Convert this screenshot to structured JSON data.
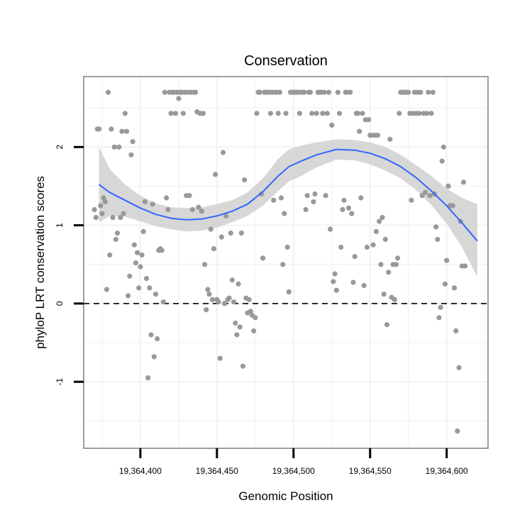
{
  "chart_data": {
    "type": "scatter",
    "title": "Conservation",
    "xlabel": "Genomic Position",
    "ylabel": "phyloP LRT conservation scores",
    "xlim": [
      19364363,
      19364627
    ],
    "ylim": [
      -1.85,
      2.9
    ],
    "x_ticks": [
      19364400,
      19364450,
      19364500,
      19364550,
      19364600
    ],
    "x_tick_labels": [
      "19,364,400",
      "19,364,450",
      "19,364,500",
      "19,364,550",
      "19,364,600"
    ],
    "y_ticks": [
      -1,
      0,
      1,
      2
    ],
    "y_tick_labels": [
      "-1",
      "0",
      "1",
      "2"
    ],
    "reference_line": {
      "y": 0,
      "style": "dashed"
    },
    "colors": {
      "points": "#999999",
      "smooth_line": "#3366FF",
      "confidence_band": "#d3d3d3",
      "grid": "#f2f2f2",
      "panel_border": "#7f7f7f"
    },
    "smooth": {
      "x": [
        19364373,
        19364380,
        19364390,
        19364400,
        19364410,
        19364420,
        19364430,
        19364440,
        19364450,
        19364460,
        19364470,
        19364480,
        19364490,
        19364497,
        19364505,
        19364515,
        19364528,
        19364540,
        19364550,
        19364560,
        19364570,
        19364580,
        19364590,
        19364600,
        19364610,
        19364620
      ],
      "y": [
        1.52,
        1.42,
        1.32,
        1.22,
        1.14,
        1.09,
        1.07,
        1.08,
        1.12,
        1.18,
        1.27,
        1.43,
        1.63,
        1.75,
        1.82,
        1.9,
        1.97,
        1.96,
        1.92,
        1.85,
        1.75,
        1.61,
        1.44,
        1.25,
        1.03,
        0.8
      ],
      "upper": [
        2.0,
        1.72,
        1.52,
        1.38,
        1.28,
        1.23,
        1.22,
        1.23,
        1.27,
        1.32,
        1.42,
        1.6,
        1.85,
        1.97,
        2.02,
        2.06,
        2.1,
        2.09,
        2.06,
        2.0,
        1.9,
        1.77,
        1.63,
        1.47,
        1.35,
        1.27
      ],
      "lower": [
        1.04,
        1.12,
        1.11,
        1.05,
        0.99,
        0.95,
        0.92,
        0.93,
        0.97,
        1.04,
        1.12,
        1.25,
        1.44,
        1.56,
        1.63,
        1.74,
        1.84,
        1.83,
        1.78,
        1.7,
        1.6,
        1.45,
        1.26,
        1.02,
        0.72,
        0.34
      ]
    },
    "points": [
      {
        "x": 19364370,
        "y": 1.2
      },
      {
        "x": 19364371,
        "y": 1.1
      },
      {
        "x": 19364372,
        "y": 2.23
      },
      {
        "x": 19364373,
        "y": 2.23
      },
      {
        "x": 19364374,
        "y": 1.25
      },
      {
        "x": 19364375,
        "y": 1.15
      },
      {
        "x": 19364376,
        "y": 1.35
      },
      {
        "x": 19364377,
        "y": 1.3
      },
      {
        "x": 19364378,
        "y": 0.18
      },
      {
        "x": 19364379,
        "y": 2.7
      },
      {
        "x": 19364380,
        "y": 0.62
      },
      {
        "x": 19364381,
        "y": 2.23
      },
      {
        "x": 19364382,
        "y": 1.1
      },
      {
        "x": 19364383,
        "y": 2.0
      },
      {
        "x": 19364384,
        "y": 0.82
      },
      {
        "x": 19364385,
        "y": 0.9
      },
      {
        "x": 19364386,
        "y": 2.0
      },
      {
        "x": 19364387,
        "y": 1.1
      },
      {
        "x": 19364388,
        "y": 2.2
      },
      {
        "x": 19364389,
        "y": 1.15
      },
      {
        "x": 19364390,
        "y": 2.43
      },
      {
        "x": 19364391,
        "y": 2.2
      },
      {
        "x": 19364392,
        "y": 0.1
      },
      {
        "x": 19364393,
        "y": 0.35
      },
      {
        "x": 19364394,
        "y": 1.9
      },
      {
        "x": 19364395,
        "y": 2.07
      },
      {
        "x": 19364396,
        "y": 0.75
      },
      {
        "x": 19364397,
        "y": 0.52
      },
      {
        "x": 19364398,
        "y": 0.65
      },
      {
        "x": 19364399,
        "y": 0.2
      },
      {
        "x": 19364400,
        "y": 0.47
      },
      {
        "x": 19364401,
        "y": 0.62
      },
      {
        "x": 19364402,
        "y": 0.92
      },
      {
        "x": 19364403,
        "y": 1.3
      },
      {
        "x": 19364404,
        "y": 0.32
      },
      {
        "x": 19364405,
        "y": -0.95
      },
      {
        "x": 19364406,
        "y": 0.2
      },
      {
        "x": 19364407,
        "y": -0.4
      },
      {
        "x": 19364408,
        "y": 1.27
      },
      {
        "x": 19364409,
        "y": -0.68
      },
      {
        "x": 19364410,
        "y": 0.12
      },
      {
        "x": 19364411,
        "y": -0.45
      },
      {
        "x": 19364412,
        "y": 0.68
      },
      {
        "x": 19364413,
        "y": 0.7
      },
      {
        "x": 19364414,
        "y": 0.68
      },
      {
        "x": 19364415,
        "y": 0.02
      },
      {
        "x": 19364416,
        "y": 2.7
      },
      {
        "x": 19364417,
        "y": 1.35
      },
      {
        "x": 19364418,
        "y": 1.2
      },
      {
        "x": 19364419,
        "y": 2.7
      },
      {
        "x": 19364420,
        "y": 2.43
      },
      {
        "x": 19364421,
        "y": 2.7
      },
      {
        "x": 19364422,
        "y": 2.7
      },
      {
        "x": 19364423,
        "y": 2.43
      },
      {
        "x": 19364424,
        "y": 2.7
      },
      {
        "x": 19364425,
        "y": 2.62
      },
      {
        "x": 19364426,
        "y": 2.7
      },
      {
        "x": 19364427,
        "y": 2.7
      },
      {
        "x": 19364428,
        "y": 2.43
      },
      {
        "x": 19364429,
        "y": 2.7
      },
      {
        "x": 19364430,
        "y": 1.38
      },
      {
        "x": 19364431,
        "y": 2.7
      },
      {
        "x": 19364432,
        "y": 1.38
      },
      {
        "x": 19364433,
        "y": 2.7
      },
      {
        "x": 19364434,
        "y": 1.2
      },
      {
        "x": 19364435,
        "y": 2.7
      },
      {
        "x": 19364436,
        "y": 2.7
      },
      {
        "x": 19364437,
        "y": 2.45
      },
      {
        "x": 19364438,
        "y": 1.23
      },
      {
        "x": 19364439,
        "y": 2.43
      },
      {
        "x": 19364440,
        "y": 1.18
      },
      {
        "x": 19364441,
        "y": 2.43
      },
      {
        "x": 19364442,
        "y": 0.5
      },
      {
        "x": 19364443,
        "y": -0.08
      },
      {
        "x": 19364444,
        "y": 0.18
      },
      {
        "x": 19364445,
        "y": 0.12
      },
      {
        "x": 19364446,
        "y": 0.95
      },
      {
        "x": 19364447,
        "y": 0.05
      },
      {
        "x": 19364448,
        "y": 0.7
      },
      {
        "x": 19364449,
        "y": 1.65
      },
      {
        "x": 19364450,
        "y": 0.05
      },
      {
        "x": 19364451,
        "y": 0.02
      },
      {
        "x": 19364452,
        "y": -0.7
      },
      {
        "x": 19364453,
        "y": 0.85
      },
      {
        "x": 19364454,
        "y": 1.93
      },
      {
        "x": 19364455,
        "y": 0.0
      },
      {
        "x": 19364456,
        "y": 1.12
      },
      {
        "x": 19364457,
        "y": 0.05
      },
      {
        "x": 19364458,
        "y": 0.07
      },
      {
        "x": 19364459,
        "y": 0.9
      },
      {
        "x": 19364460,
        "y": 0.3
      },
      {
        "x": 19364461,
        "y": 0.02
      },
      {
        "x": 19364462,
        "y": -0.25
      },
      {
        "x": 19364463,
        "y": -0.4
      },
      {
        "x": 19364464,
        "y": 0.25
      },
      {
        "x": 19364465,
        "y": -0.3
      },
      {
        "x": 19364466,
        "y": 0.9
      },
      {
        "x": 19364467,
        "y": -0.8
      },
      {
        "x": 19364468,
        "y": 1.58
      },
      {
        "x": 19364469,
        "y": 0.07
      },
      {
        "x": 19364470,
        "y": -0.12
      },
      {
        "x": 19364471,
        "y": 0.05
      },
      {
        "x": 19364472,
        "y": -0.1
      },
      {
        "x": 19364473,
        "y": -0.15
      },
      {
        "x": 19364474,
        "y": -0.35
      },
      {
        "x": 19364475,
        "y": -0.18
      },
      {
        "x": 19364476,
        "y": 2.43
      },
      {
        "x": 19364477,
        "y": 2.7
      },
      {
        "x": 19364478,
        "y": 2.7
      },
      {
        "x": 19364479,
        "y": 1.4
      },
      {
        "x": 19364480,
        "y": 0.58
      },
      {
        "x": 19364481,
        "y": 2.7
      },
      {
        "x": 19364482,
        "y": 2.7
      },
      {
        "x": 19364483,
        "y": 2.7
      },
      {
        "x": 19364484,
        "y": 2.7
      },
      {
        "x": 19364485,
        "y": 2.43
      },
      {
        "x": 19364486,
        "y": 2.7
      },
      {
        "x": 19364487,
        "y": 1.32
      },
      {
        "x": 19364488,
        "y": 2.7
      },
      {
        "x": 19364489,
        "y": 2.7
      },
      {
        "x": 19364490,
        "y": 2.43
      },
      {
        "x": 19364491,
        "y": 2.7
      },
      {
        "x": 19364492,
        "y": 1.35
      },
      {
        "x": 19364493,
        "y": 0.5
      },
      {
        "x": 19364494,
        "y": 1.15
      },
      {
        "x": 19364495,
        "y": 2.43
      },
      {
        "x": 19364496,
        "y": 0.72
      },
      {
        "x": 19364497,
        "y": 0.15
      },
      {
        "x": 19364498,
        "y": 2.7
      },
      {
        "x": 19364499,
        "y": 2.7
      },
      {
        "x": 19364500,
        "y": 2.7
      },
      {
        "x": 19364501,
        "y": 2.7
      },
      {
        "x": 19364502,
        "y": 2.7
      },
      {
        "x": 19364503,
        "y": 2.7
      },
      {
        "x": 19364504,
        "y": 2.43
      },
      {
        "x": 19364505,
        "y": 2.7
      },
      {
        "x": 19364506,
        "y": 2.7
      },
      {
        "x": 19364507,
        "y": 2.7
      },
      {
        "x": 19364508,
        "y": 1.2
      },
      {
        "x": 19364509,
        "y": 1.38
      },
      {
        "x": 19364510,
        "y": 2.7
      },
      {
        "x": 19364511,
        "y": 2.7
      },
      {
        "x": 19364512,
        "y": 2.43
      },
      {
        "x": 19364513,
        "y": 1.3
      },
      {
        "x": 19364514,
        "y": 1.4
      },
      {
        "x": 19364515,
        "y": 2.43
      },
      {
        "x": 19364516,
        "y": 2.7
      },
      {
        "x": 19364517,
        "y": 2.7
      },
      {
        "x": 19364518,
        "y": 2.7
      },
      {
        "x": 19364519,
        "y": 2.43
      },
      {
        "x": 19364520,
        "y": 2.7
      },
      {
        "x": 19364521,
        "y": 1.38
      },
      {
        "x": 19364522,
        "y": 2.43
      },
      {
        "x": 19364523,
        "y": 2.7
      },
      {
        "x": 19364524,
        "y": 0.95
      },
      {
        "x": 19364525,
        "y": 2.28
      },
      {
        "x": 19364526,
        "y": 0.28
      },
      {
        "x": 19364527,
        "y": 0.38
      },
      {
        "x": 19364528,
        "y": 0.17
      },
      {
        "x": 19364529,
        "y": 2.7
      },
      {
        "x": 19364530,
        "y": 2.43
      },
      {
        "x": 19364531,
        "y": 0.72
      },
      {
        "x": 19364532,
        "y": 1.2
      },
      {
        "x": 19364533,
        "y": 1.32
      },
      {
        "x": 19364534,
        "y": 2.7
      },
      {
        "x": 19364535,
        "y": 2.7
      },
      {
        "x": 19364536,
        "y": 1.22
      },
      {
        "x": 19364537,
        "y": 2.7
      },
      {
        "x": 19364538,
        "y": 1.15
      },
      {
        "x": 19364539,
        "y": 0.27
      },
      {
        "x": 19364540,
        "y": 0.6
      },
      {
        "x": 19364541,
        "y": 2.43
      },
      {
        "x": 19364542,
        "y": 2.43
      },
      {
        "x": 19364543,
        "y": 2.2
      },
      {
        "x": 19364544,
        "y": 1.35
      },
      {
        "x": 19364545,
        "y": 2.43
      },
      {
        "x": 19364546,
        "y": 0.23
      },
      {
        "x": 19364547,
        "y": 2.35
      },
      {
        "x": 19364548,
        "y": 0.72
      },
      {
        "x": 19364549,
        "y": 2.35
      },
      {
        "x": 19364550,
        "y": 2.15
      },
      {
        "x": 19364551,
        "y": 2.15
      },
      {
        "x": 19364552,
        "y": 0.75
      },
      {
        "x": 19364553,
        "y": 2.15
      },
      {
        "x": 19364554,
        "y": 0.92
      },
      {
        "x": 19364555,
        "y": 2.15
      },
      {
        "x": 19364556,
        "y": 1.05
      },
      {
        "x": 19364557,
        "y": 0.5
      },
      {
        "x": 19364558,
        "y": 1.1
      },
      {
        "x": 19364559,
        "y": 0.12
      },
      {
        "x": 19364560,
        "y": 0.82
      },
      {
        "x": 19364561,
        "y": -0.27
      },
      {
        "x": 19364562,
        "y": 0.4
      },
      {
        "x": 19364563,
        "y": 2.1
      },
      {
        "x": 19364564,
        "y": 0.08
      },
      {
        "x": 19364565,
        "y": 0.5
      },
      {
        "x": 19364566,
        "y": 0.05
      },
      {
        "x": 19364567,
        "y": 0.5
      },
      {
        "x": 19364568,
        "y": 0.58
      },
      {
        "x": 19364569,
        "y": 2.43
      },
      {
        "x": 19364570,
        "y": 2.7
      },
      {
        "x": 19364571,
        "y": 2.7
      },
      {
        "x": 19364572,
        "y": 2.7
      },
      {
        "x": 19364573,
        "y": 2.7
      },
      {
        "x": 19364574,
        "y": 2.7
      },
      {
        "x": 19364575,
        "y": 2.7
      },
      {
        "x": 19364576,
        "y": 2.43
      },
      {
        "x": 19364577,
        "y": 1.32
      },
      {
        "x": 19364578,
        "y": 2.43
      },
      {
        "x": 19364579,
        "y": 2.7
      },
      {
        "x": 19364580,
        "y": 2.43
      },
      {
        "x": 19364581,
        "y": 2.7
      },
      {
        "x": 19364582,
        "y": 2.43
      },
      {
        "x": 19364583,
        "y": 2.7
      },
      {
        "x": 19364584,
        "y": 1.38
      },
      {
        "x": 19364585,
        "y": 2.43
      },
      {
        "x": 19364586,
        "y": 1.42
      },
      {
        "x": 19364587,
        "y": 2.43
      },
      {
        "x": 19364588,
        "y": 2.7
      },
      {
        "x": 19364589,
        "y": 1.38
      },
      {
        "x": 19364590,
        "y": 2.43
      },
      {
        "x": 19364591,
        "y": 2.7
      },
      {
        "x": 19364592,
        "y": 1.4
      },
      {
        "x": 19364593,
        "y": 0.98
      },
      {
        "x": 19364594,
        "y": 0.82
      },
      {
        "x": 19364595,
        "y": -0.18
      },
      {
        "x": 19364596,
        "y": -0.05
      },
      {
        "x": 19364597,
        "y": 1.82
      },
      {
        "x": 19364598,
        "y": 2.0
      },
      {
        "x": 19364599,
        "y": 0.25
      },
      {
        "x": 19364600,
        "y": 0.55
      },
      {
        "x": 19364601,
        "y": 1.5
      },
      {
        "x": 19364602,
        "y": 1.25
      },
      {
        "x": 19364603,
        "y": 1.25
      },
      {
        "x": 19364604,
        "y": 1.25
      },
      {
        "x": 19364605,
        "y": 0.2
      },
      {
        "x": 19364606,
        "y": -0.35
      },
      {
        "x": 19364607,
        "y": -1.63
      },
      {
        "x": 19364608,
        "y": -0.82
      },
      {
        "x": 19364609,
        "y": 1.05
      },
      {
        "x": 19364610,
        "y": 0.48
      },
      {
        "x": 19364611,
        "y": 1.55
      },
      {
        "x": 19364612,
        "y": 0.48
      }
    ]
  }
}
